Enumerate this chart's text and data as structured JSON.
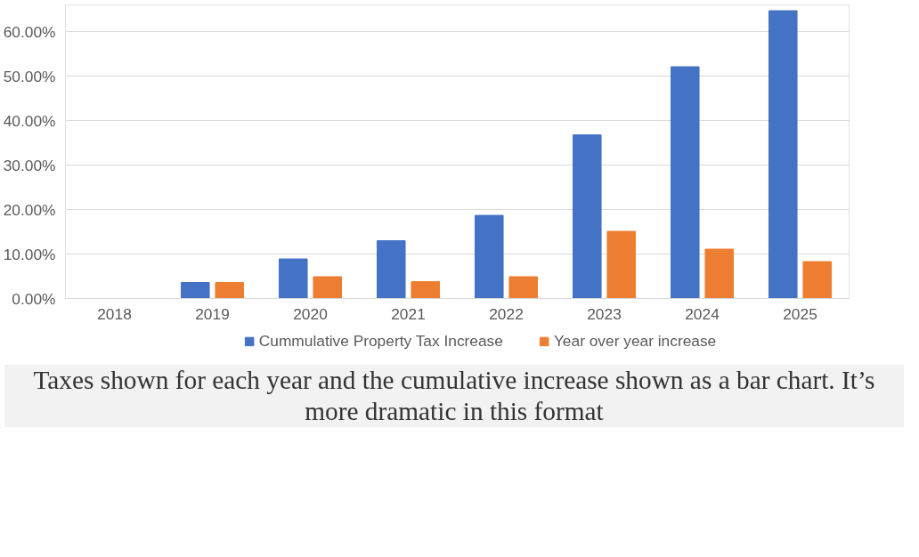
{
  "chart_data": {
    "type": "bar",
    "categories": [
      "2018",
      "2019",
      "2020",
      "2021",
      "2022",
      "2023",
      "2024",
      "2025"
    ],
    "series": [
      {
        "name": "Cummulative Property Tax Increase",
        "color": "#4472c4",
        "values": [
          0,
          3.6,
          8.9,
          13.0,
          18.7,
          36.8,
          52.1,
          64.7
        ]
      },
      {
        "name": "Year over year increase",
        "color": "#ed7d31",
        "values": [
          0,
          3.6,
          4.9,
          3.8,
          4.9,
          15.1,
          11.1,
          8.3
        ]
      }
    ],
    "ylim": [
      0,
      66
    ],
    "yticks": [
      {
        "value": 0,
        "label": "0.00%"
      },
      {
        "value": 10,
        "label": "10.00%"
      },
      {
        "value": 20,
        "label": "20.00%"
      },
      {
        "value": 30,
        "label": "30.00%"
      },
      {
        "value": 40,
        "label": "40.00%"
      },
      {
        "value": 50,
        "label": "50.00%"
      },
      {
        "value": 60,
        "label": "60.00%"
      }
    ],
    "grid": "y",
    "legend": "bottom",
    "annotations": [
      "Taxes shown for each year and the cumulative increase shown as a bar chart. It’s more dramatic in this format"
    ]
  }
}
